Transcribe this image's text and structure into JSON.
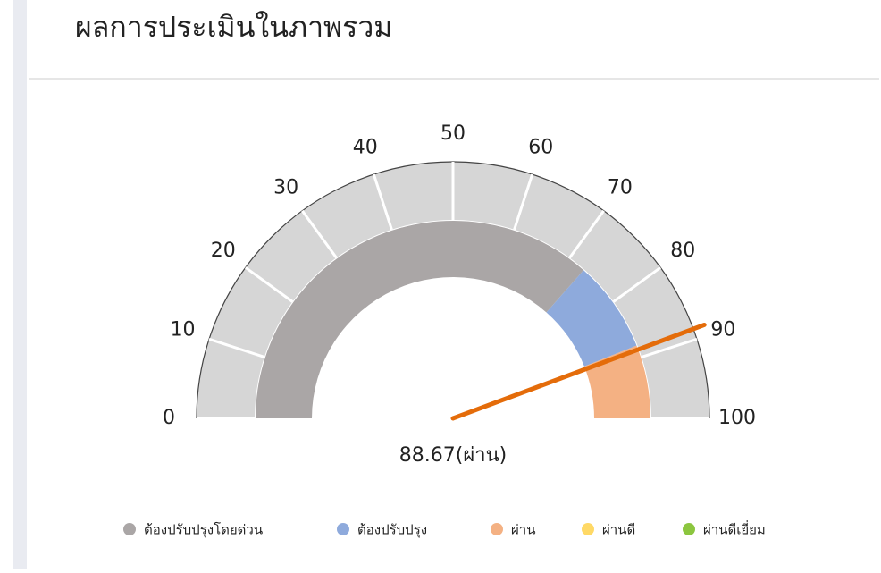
{
  "chart_data": {
    "type": "gauge",
    "title": "ผลการประเมินในภาพรวม",
    "value": 88.67,
    "value_label": "88.67(ผ่าน)",
    "scale": [
      0,
      100
    ],
    "ticks": [
      0,
      10,
      20,
      30,
      40,
      50,
      60,
      70,
      80,
      90,
      100
    ],
    "needle_color": "#e46c0a",
    "series": [
      {
        "name": "ต้องปรับปรุงโดยด่วน",
        "color": "#aaa6a6",
        "values": [
          0,
          73
        ]
      },
      {
        "name": "ต้องปรับปรุง",
        "color": "#8eaadc",
        "values": [
          73,
          88
        ]
      },
      {
        "name": "ผ่าน",
        "color": "#f4b183",
        "values": [
          88,
          100
        ]
      },
      {
        "name": "ผ่านดี",
        "color": "#ffd966"
      },
      {
        "name": "ผ่านดีเยี่ยม",
        "color": "#8cc63f"
      }
    ]
  }
}
